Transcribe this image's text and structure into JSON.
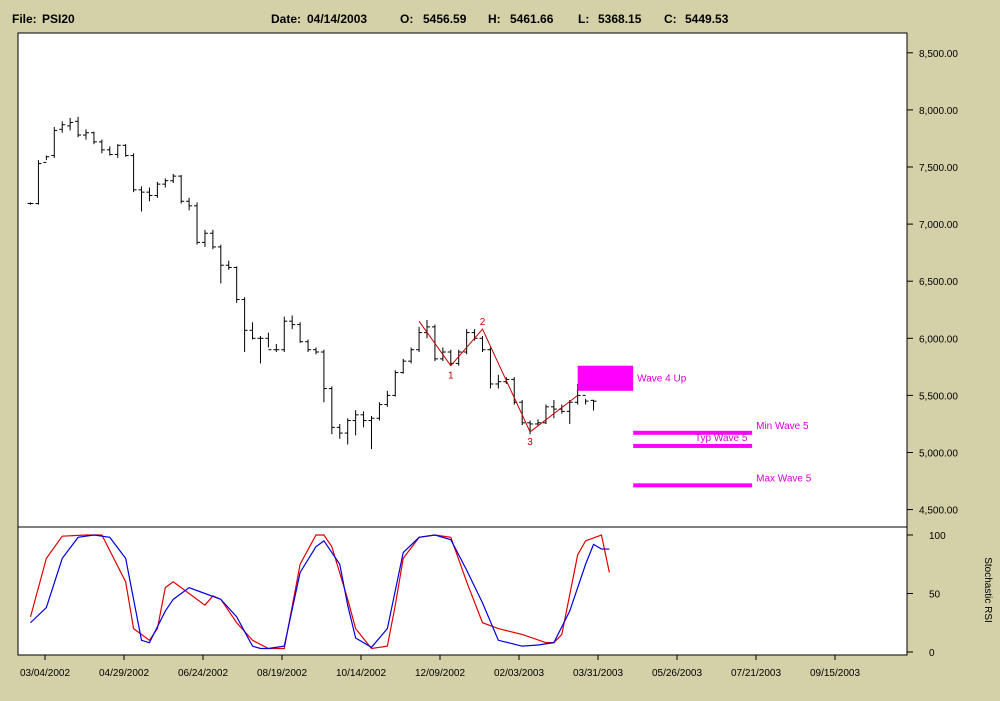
{
  "header": {
    "file_label": "File:",
    "file": "PSI20",
    "date_label": "Date:",
    "date": "04/14/2003",
    "o_label": "O:",
    "o": "5456.59",
    "h_label": "H:",
    "h": "5461.66",
    "l_label": "L:",
    "l": "5368.15",
    "c_label": "C:",
    "c": "5449.53"
  },
  "colors": {
    "background": "#d4d0a8",
    "plot": "#ffffff",
    "price": "#000000",
    "wave": "#c00000",
    "target": "#ff00ff",
    "stoch_red": "#e00000",
    "stoch_blue": "#0000e0"
  },
  "chart_data": [
    {
      "type": "ohlc",
      "grid": false,
      "ylim": [
        4400,
        8750
      ],
      "yticks": [
        "8,500.00",
        "8,000.00",
        "7,500.00",
        "7,000.00",
        "6,500.00",
        "6,000.00",
        "5,500.00",
        "5,000.00",
        "4,500.00"
      ],
      "ytick_values": [
        8500,
        8000,
        7500,
        7000,
        6500,
        6000,
        5500,
        5000,
        4500
      ],
      "xticks": [
        "03/04/2002",
        "04/29/2002",
        "06/24/2002",
        "08/19/2002",
        "10/14/2002",
        "12/09/2002",
        "02/03/2003",
        "03/31/2003",
        "05/26/2003",
        "07/21/2003",
        "09/15/2003"
      ],
      "weeks": [
        {
          "o": 7180,
          "h": 7190,
          "l": 7170,
          "c": 7180
        },
        {
          "o": 7180,
          "h": 7560,
          "l": 7170,
          "c": 7530
        },
        {
          "o": 7540,
          "h": 7600,
          "l": 7560,
          "c": 7590
        },
        {
          "o": 7600,
          "h": 7850,
          "l": 7580,
          "c": 7820
        },
        {
          "o": 7830,
          "h": 7900,
          "l": 7800,
          "c": 7870
        },
        {
          "o": 7860,
          "h": 7930,
          "l": 7820,
          "c": 7890
        },
        {
          "o": 7900,
          "h": 7940,
          "l": 7760,
          "c": 7780
        },
        {
          "o": 7780,
          "h": 7830,
          "l": 7740,
          "c": 7800
        },
        {
          "o": 7800,
          "h": 7810,
          "l": 7700,
          "c": 7720
        },
        {
          "o": 7720,
          "h": 7740,
          "l": 7620,
          "c": 7650
        },
        {
          "o": 7650,
          "h": 7680,
          "l": 7600,
          "c": 7610
        },
        {
          "o": 7610,
          "h": 7700,
          "l": 7580,
          "c": 7690
        },
        {
          "o": 7690,
          "h": 7700,
          "l": 7590,
          "c": 7600
        },
        {
          "o": 7600,
          "h": 7620,
          "l": 7280,
          "c": 7300
        },
        {
          "o": 7300,
          "h": 7330,
          "l": 7110,
          "c": 7280
        },
        {
          "o": 7280,
          "h": 7320,
          "l": 7200,
          "c": 7250
        },
        {
          "o": 7250,
          "h": 7370,
          "l": 7230,
          "c": 7350
        },
        {
          "o": 7350,
          "h": 7400,
          "l": 7320,
          "c": 7380
        },
        {
          "o": 7380,
          "h": 7440,
          "l": 7360,
          "c": 7420
        },
        {
          "o": 7420,
          "h": 7430,
          "l": 7180,
          "c": 7200
        },
        {
          "o": 7200,
          "h": 7230,
          "l": 7120,
          "c": 7160
        },
        {
          "o": 7160,
          "h": 7190,
          "l": 6820,
          "c": 6840
        },
        {
          "o": 6840,
          "h": 6950,
          "l": 6800,
          "c": 6920
        },
        {
          "o": 6920,
          "h": 6950,
          "l": 6780,
          "c": 6800
        },
        {
          "o": 6800,
          "h": 6820,
          "l": 6480,
          "c": 6640
        },
        {
          "o": 6640,
          "h": 6680,
          "l": 6600,
          "c": 6620
        },
        {
          "o": 6620,
          "h": 6630,
          "l": 6310,
          "c": 6340
        },
        {
          "o": 6340,
          "h": 6360,
          "l": 5880,
          "c": 6070
        },
        {
          "o": 6070,
          "h": 6140,
          "l": 5990,
          "c": 6000
        },
        {
          "o": 6000,
          "h": 6020,
          "l": 5780,
          "c": 6000
        },
        {
          "o": 6000,
          "h": 6050,
          "l": 5920,
          "c": 5900
        },
        {
          "o": 5900,
          "h": 5950,
          "l": 5880,
          "c": 5900
        },
        {
          "o": 5900,
          "h": 6190,
          "l": 5880,
          "c": 6150
        },
        {
          "o": 6150,
          "h": 6200,
          "l": 6080,
          "c": 6120
        },
        {
          "o": 6120,
          "h": 6140,
          "l": 5960,
          "c": 5970
        },
        {
          "o": 5970,
          "h": 5990,
          "l": 5880,
          "c": 5900
        },
        {
          "o": 5900,
          "h": 5920,
          "l": 5860,
          "c": 5880
        },
        {
          "o": 5880,
          "h": 5900,
          "l": 5440,
          "c": 5560
        },
        {
          "o": 5560,
          "h": 5580,
          "l": 5160,
          "c": 5220
        },
        {
          "o": 5220,
          "h": 5250,
          "l": 5120,
          "c": 5170
        },
        {
          "o": 5170,
          "h": 5300,
          "l": 5070,
          "c": 5280
        },
        {
          "o": 5280,
          "h": 5370,
          "l": 5150,
          "c": 5330
        },
        {
          "o": 5330,
          "h": 5360,
          "l": 5220,
          "c": 5280
        },
        {
          "o": 5280,
          "h": 5320,
          "l": 5030,
          "c": 5300
        },
        {
          "o": 5300,
          "h": 5440,
          "l": 5280,
          "c": 5420
        },
        {
          "o": 5420,
          "h": 5540,
          "l": 5400,
          "c": 5500
        },
        {
          "o": 5500,
          "h": 5720,
          "l": 5490,
          "c": 5700
        },
        {
          "o": 5700,
          "h": 5820,
          "l": 5690,
          "c": 5800
        },
        {
          "o": 5800,
          "h": 5920,
          "l": 5780,
          "c": 5900
        },
        {
          "o": 5900,
          "h": 6100,
          "l": 5880,
          "c": 6050
        },
        {
          "o": 6050,
          "h": 6160,
          "l": 6000,
          "c": 6100
        },
        {
          "o": 6100,
          "h": 6120,
          "l": 5800,
          "c": 5820
        },
        {
          "o": 5820,
          "h": 5920,
          "l": 5800,
          "c": 5880
        },
        {
          "o": 5880,
          "h": 5900,
          "l": 5760,
          "c": 5780
        },
        {
          "o": 5780,
          "h": 5900,
          "l": 5760,
          "c": 5880
        },
        {
          "o": 5880,
          "h": 6080,
          "l": 5860,
          "c": 6050
        },
        {
          "o": 6050,
          "h": 6080,
          "l": 5980,
          "c": 6000
        },
        {
          "o": 6000,
          "h": 6020,
          "l": 5880,
          "c": 5900
        },
        {
          "o": 5900,
          "h": 5920,
          "l": 5560,
          "c": 5600
        },
        {
          "o": 5600,
          "h": 5680,
          "l": 5560,
          "c": 5620
        },
        {
          "o": 5620,
          "h": 5660,
          "l": 5600,
          "c": 5640
        },
        {
          "o": 5640,
          "h": 5660,
          "l": 5420,
          "c": 5440
        },
        {
          "o": 5440,
          "h": 5460,
          "l": 5240,
          "c": 5260
        },
        {
          "o": 5260,
          "h": 5280,
          "l": 5160,
          "c": 5250
        },
        {
          "o": 5250,
          "h": 5290,
          "l": 5230,
          "c": 5260
        },
        {
          "o": 5260,
          "h": 5420,
          "l": 5250,
          "c": 5400
        },
        {
          "o": 5400,
          "h": 5460,
          "l": 5300,
          "c": 5380
        },
        {
          "o": 5380,
          "h": 5420,
          "l": 5340,
          "c": 5360
        },
        {
          "o": 5360,
          "h": 5460,
          "l": 5250,
          "c": 5440
        },
        {
          "o": 5440,
          "h": 5600,
          "l": 5420,
          "c": 5500
        },
        {
          "o": 5500,
          "h": 5470,
          "l": 5420,
          "c": 5450
        },
        {
          "o": 5456.59,
          "h": 5461.66,
          "l": 5368.15,
          "c": 5449.53
        }
      ],
      "wave_path": [
        {
          "label": "",
          "week": 49,
          "v": 6150
        },
        {
          "label": "1",
          "week": 53,
          "v": 5760
        },
        {
          "label": "2",
          "week": 57,
          "v": 6080
        },
        {
          "label": "3",
          "week": 63,
          "v": 5180
        },
        {
          "label": "",
          "week": 69,
          "v": 5500
        }
      ],
      "targets": [
        {
          "label": "Wave 4 Up",
          "w_start": 69,
          "w_end": 76,
          "v_low": 5540,
          "v_high": 5760
        },
        {
          "label": "Min Wave 5",
          "w_start": 76,
          "w_end": 91,
          "v_low": 5160,
          "v_high": 5190
        },
        {
          "label": "Typ Wave 5",
          "w_start": 76,
          "w_end": 91,
          "v_low": 5040,
          "v_high": 5075
        },
        {
          "label": "Max Wave 5",
          "w_start": 76,
          "w_end": 91,
          "v_low": 4700,
          "v_high": 4730
        }
      ]
    },
    {
      "type": "line",
      "ylabel": "Stochastic RSI",
      "ylim": [
        0,
        100
      ],
      "yticks": [
        "100",
        "50",
        "0"
      ],
      "ytick_values": [
        100,
        50,
        0
      ],
      "series": [
        {
          "color": "#e00000",
          "x": [
            0,
            2,
            4,
            7,
            9,
            12,
            13,
            15,
            16,
            17,
            18,
            20,
            22,
            23,
            24,
            26,
            28,
            30,
            32,
            34,
            36,
            37,
            38,
            40,
            41,
            43,
            45,
            46,
            47,
            49,
            51,
            53,
            55,
            57,
            59,
            62,
            65,
            66,
            67,
            69,
            70,
            72,
            73
          ],
          "y": [
            30,
            80,
            99,
            100,
            100,
            60,
            20,
            10,
            20,
            55,
            60,
            50,
            40,
            48,
            45,
            25,
            10,
            3,
            3,
            75,
            100,
            100,
            90,
            45,
            20,
            3,
            5,
            40,
            80,
            98,
            100,
            98,
            60,
            25,
            20,
            15,
            8,
            8,
            15,
            83,
            95,
            100,
            68
          ]
        },
        {
          "color": "#0000e0",
          "x": [
            0,
            2,
            4,
            6,
            8,
            10,
            12,
            14,
            15,
            17,
            18,
            20,
            22,
            24,
            26,
            28,
            29,
            30,
            32,
            34,
            36,
            37,
            39,
            40,
            41,
            43,
            45,
            47,
            49,
            51,
            53,
            55,
            57,
            59,
            62,
            64,
            66,
            68,
            70,
            71,
            72,
            73
          ],
          "y": [
            25,
            38,
            80,
            98,
            100,
            98,
            80,
            10,
            8,
            35,
            45,
            55,
            50,
            45,
            30,
            5,
            3,
            3,
            5,
            68,
            90,
            95,
            75,
            40,
            12,
            4,
            20,
            85,
            98,
            100,
            96,
            70,
            42,
            10,
            5,
            6,
            8,
            35,
            75,
            92,
            88,
            88
          ]
        }
      ]
    }
  ]
}
